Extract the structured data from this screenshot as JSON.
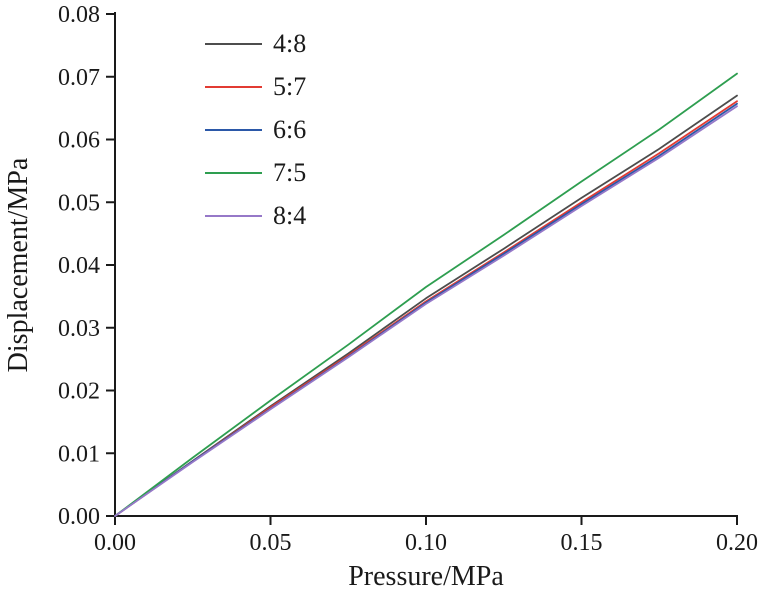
{
  "chart_data": {
    "type": "line",
    "title": "",
    "xlabel": "Pressure/MPa",
    "ylabel": "Displacement/MPa",
    "xlim": [
      0.0,
      0.2
    ],
    "ylim": [
      0.0,
      0.08
    ],
    "x_ticks": [
      0.0,
      0.05,
      0.1,
      0.15,
      0.2
    ],
    "y_ticks": [
      0.0,
      0.01,
      0.02,
      0.03,
      0.04,
      0.05,
      0.06,
      0.07,
      0.08
    ],
    "grid": false,
    "legend_position": "upper-left-inside",
    "x": [
      0.0,
      0.025,
      0.05,
      0.075,
      0.1,
      0.125,
      0.15,
      0.175,
      0.2
    ],
    "series": [
      {
        "name": "4:8",
        "color": "#4d4d4d",
        "values": [
          0.0,
          0.0088,
          0.0175,
          0.0259,
          0.0347,
          0.0426,
          0.0507,
          0.0585,
          0.067
        ]
      },
      {
        "name": "5:7",
        "color": "#e23b33",
        "values": [
          0.0,
          0.0087,
          0.0173,
          0.0256,
          0.0342,
          0.042,
          0.05,
          0.0578,
          0.0661
        ]
      },
      {
        "name": "6:6",
        "color": "#2b58a8",
        "values": [
          0.0,
          0.0087,
          0.0171,
          0.0254,
          0.034,
          0.0418,
          0.0497,
          0.0574,
          0.0657
        ]
      },
      {
        "name": "7:5",
        "color": "#2e9e50",
        "values": [
          0.0,
          0.0093,
          0.0184,
          0.0273,
          0.0365,
          0.0448,
          0.0533,
          0.0616,
          0.0705
        ]
      },
      {
        "name": "8:4",
        "color": "#9678c8",
        "values": [
          0.0,
          0.0086,
          0.017,
          0.0253,
          0.0338,
          0.0415,
          0.0494,
          0.0571,
          0.0653
        ]
      }
    ]
  },
  "axes": {
    "x_title": "Pressure/MPa",
    "y_title": "Displacement/MPa"
  }
}
